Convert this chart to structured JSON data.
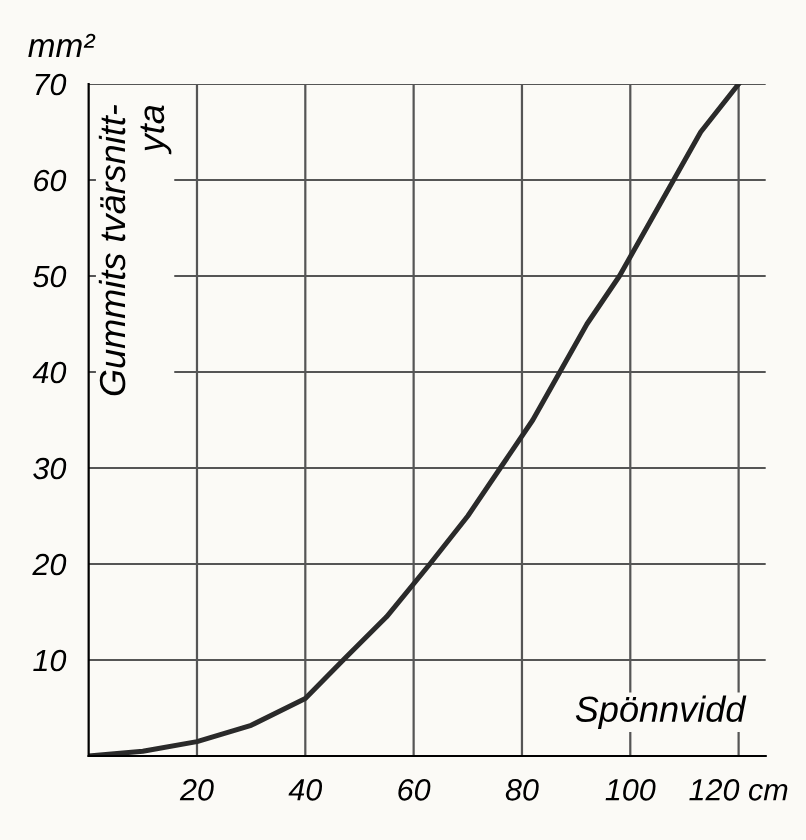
{
  "chart_data": {
    "type": "line",
    "xlabel": "Spönnvidd",
    "ylabel": "Gummits tvärsnitt-\nyta",
    "annotations": [
      "mm²"
    ],
    "x": [
      0,
      10,
      20,
      30,
      40,
      47,
      55,
      63,
      70,
      76,
      82,
      87,
      92,
      98,
      103,
      108,
      113,
      120
    ],
    "series": [
      {
        "color": "#2a2a2a",
        "values": [
          0,
          0.5,
          1.5,
          3.2,
          6,
          10,
          14.5,
          20,
          25,
          30,
          35,
          40,
          45,
          50,
          55,
          60,
          65,
          70
        ]
      }
    ],
    "xlim": [
      0,
      125
    ],
    "ylim": [
      0,
      70
    ],
    "xticks": [
      20,
      40,
      60,
      80,
      100,
      {
        "value": 120,
        "label": "120 cm"
      }
    ],
    "yticks": [
      10,
      20,
      30,
      40,
      50,
      60,
      70
    ],
    "grid": true,
    "marker": "none",
    "line_style": "solid"
  }
}
